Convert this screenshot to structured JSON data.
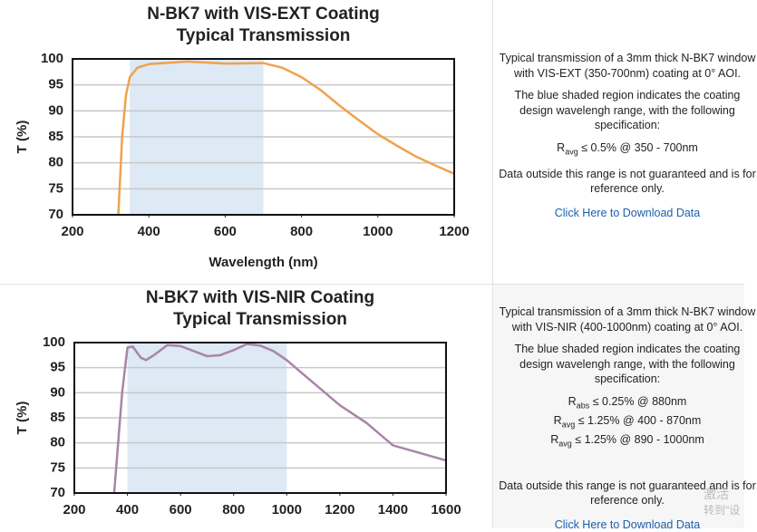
{
  "chart_data": [
    {
      "type": "line",
      "title": "N-BK7 with VIS-EXT Coating",
      "subtitle": "Typical Transmission",
      "x_label": "Wavelength (nm)",
      "y_label": "T (%)",
      "xlim": [
        200,
        1200
      ],
      "ylim": [
        70,
        100
      ],
      "xticks": [
        200,
        400,
        600,
        800,
        1000,
        1200
      ],
      "yticks": [
        70,
        75,
        80,
        85,
        90,
        95,
        100
      ],
      "grid": true,
      "shaded_region": [
        350,
        700
      ],
      "shade_color": "#dde9f5",
      "series": [
        {
          "color": "#f0a24e",
          "x": [
            320,
            330,
            340,
            350,
            370,
            400,
            500,
            600,
            700,
            750,
            800,
            850,
            900,
            950,
            1000,
            1050,
            1100,
            1150,
            1200
          ],
          "values": [
            70,
            85,
            93,
            96.5,
            98.3,
            99,
            99.5,
            99.1,
            99.2,
            98.3,
            96.5,
            94,
            91,
            88.2,
            85.5,
            83.3,
            81.2,
            79.5,
            77.9
          ]
        }
      ]
    },
    {
      "type": "line",
      "title": "N-BK7 with VIS-NIR Coating",
      "subtitle": "Typical Transmission",
      "y_label": "T (%)",
      "xlim": [
        200,
        1600
      ],
      "ylim": [
        70,
        100
      ],
      "xticks": [
        200,
        400,
        600,
        800,
        1000,
        1200,
        1400,
        1600
      ],
      "yticks": [
        70,
        75,
        80,
        85,
        90,
        95,
        100
      ],
      "grid": true,
      "shaded_region": [
        400,
        1000
      ],
      "shade_color": "#dde9f5",
      "series": [
        {
          "color": "#a885a8",
          "x": [
            350,
            380,
            400,
            420,
            450,
            470,
            500,
            550,
            600,
            700,
            750,
            800,
            850,
            900,
            950,
            1000,
            1100,
            1200,
            1300,
            1400,
            1500,
            1600
          ],
          "values": [
            70,
            90,
            99,
            99.2,
            97,
            96.5,
            97.5,
            99.5,
            99.3,
            97.3,
            97.5,
            98.5,
            99.7,
            99.4,
            98.3,
            96.5,
            92,
            87.5,
            84,
            79.5,
            78,
            76.5
          ]
        }
      ]
    }
  ],
  "panels": [
    {
      "paragraphs": [
        "Typical transmission of a 3mm thick N-BK7 window with VIS-EXT (350-700nm) coating at 0° AOI.",
        "The blue shaded region indicates the coating design wavelengh range, with the following specification:"
      ],
      "spec": [
        {
          "symbol": "R",
          "sub": "avg",
          "text": "≤ 0.5% @ 350 - 700nm"
        }
      ],
      "note": "Data outside this range is not guaranteed and is for reference only.",
      "link": "Click Here to Download Data"
    },
    {
      "paragraphs": [
        "Typical transmission of a 3mm thick N-BK7 window with VIS-NIR (400-1000nm) coating at 0° AOI.",
        "The blue shaded region indicates the coating design wavelengh range, with the following specification:"
      ],
      "spec": [
        {
          "symbol": "R",
          "sub": "abs",
          "text": "≤ 0.25% @ 880nm"
        },
        {
          "symbol": "R",
          "sub": "avg",
          "text": "≤ 1.25% @ 400 - 870nm"
        },
        {
          "symbol": "R",
          "sub": "avg",
          "text": "≤ 1.25% @ 890 - 1000nm"
        }
      ],
      "note": "Data outside this range is not guaranteed and is for reference only.",
      "link": "Click Here to Download Data"
    }
  ],
  "watermark": [
    "激活",
    "转到\"设"
  ]
}
